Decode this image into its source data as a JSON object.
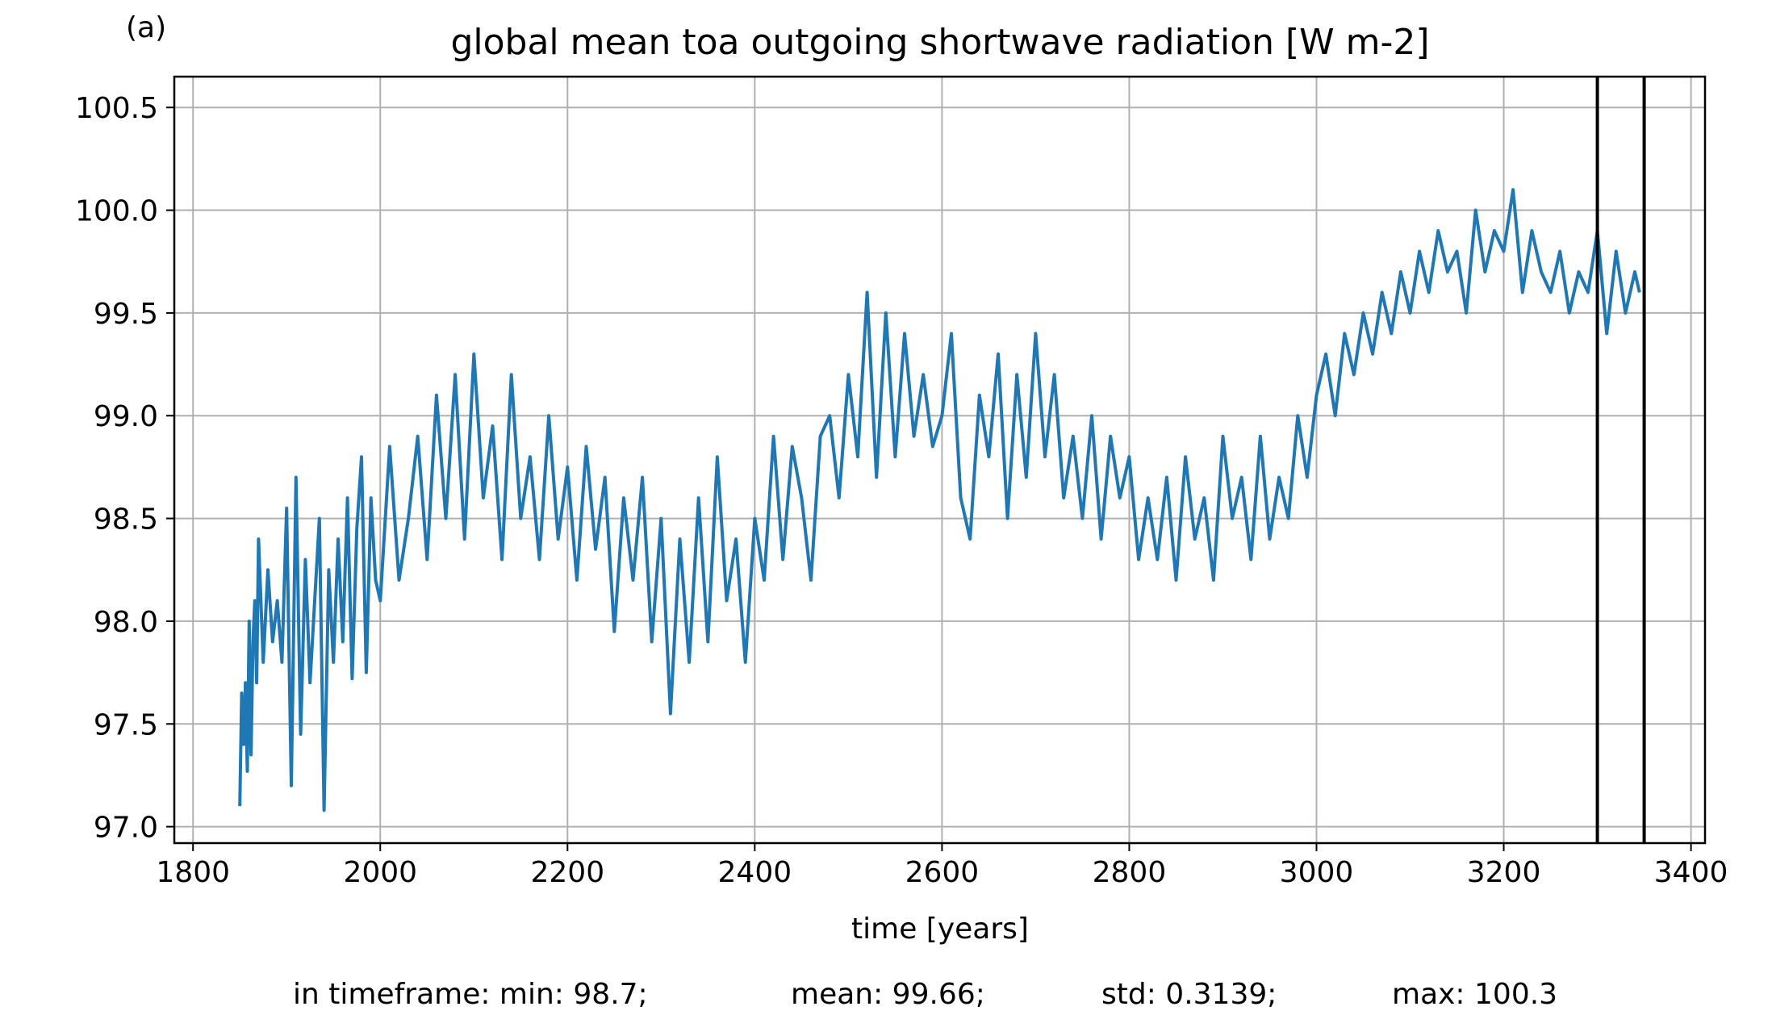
{
  "chart_data": {
    "type": "line",
    "panel_label": "(a)",
    "title": "global mean toa outgoing shortwave radiation [W m-2]",
    "xlabel": "time [years]",
    "ylabel": "",
    "xlim": [
      1780,
      3415
    ],
    "ylim": [
      96.92,
      100.65
    ],
    "xticks": [
      1800,
      2000,
      2200,
      2400,
      2600,
      2800,
      3000,
      3200,
      3400
    ],
    "xtick_labels": [
      "1800",
      "2000",
      "2200",
      "2400",
      "2600",
      "2800",
      "3000",
      "3200",
      "3400"
    ],
    "yticks": [
      97.0,
      97.5,
      98.0,
      98.5,
      99.0,
      99.5,
      100.0,
      100.5
    ],
    "ytick_labels": [
      "97.0",
      "97.5",
      "98.0",
      "98.5",
      "99.0",
      "99.5",
      "100.0",
      "100.5"
    ],
    "grid": true,
    "line_color": "#1f77b4",
    "marker_lines_x": [
      3300,
      3350
    ],
    "marker_line_color": "#000000",
    "series": [
      {
        "x": [
          1850,
          1852,
          1854,
          1856,
          1858,
          1860,
          1862,
          1864,
          1866,
          1868,
          1870,
          1875,
          1880,
          1885,
          1890,
          1895,
          1900,
          1905,
          1910,
          1915,
          1920,
          1925,
          1930,
          1935,
          1940,
          1945,
          1950,
          1955,
          1960,
          1965,
          1970,
          1975,
          1980,
          1985,
          1990,
          1995,
          2000,
          2010,
          2020,
          2030,
          2040,
          2050,
          2060,
          2070,
          2080,
          2090,
          2100,
          2110,
          2120,
          2130,
          2140,
          2150,
          2160,
          2170,
          2180,
          2190,
          2200,
          2210,
          2220,
          2230,
          2240,
          2250,
          2260,
          2270,
          2280,
          2290,
          2300,
          2310,
          2320,
          2330,
          2340,
          2350,
          2360,
          2370,
          2380,
          2390,
          2400,
          2410,
          2420,
          2430,
          2440,
          2450,
          2460,
          2470,
          2480,
          2490,
          2500,
          2510,
          2520,
          2530,
          2540,
          2550,
          2560,
          2570,
          2580,
          2590,
          2600,
          2610,
          2620,
          2630,
          2640,
          2650,
          2660,
          2670,
          2680,
          2690,
          2700,
          2710,
          2720,
          2730,
          2740,
          2750,
          2760,
          2770,
          2780,
          2790,
          2800,
          2810,
          2820,
          2830,
          2840,
          2850,
          2860,
          2870,
          2880,
          2890,
          2900,
          2910,
          2920,
          2930,
          2940,
          2950,
          2960,
          2970,
          2980,
          2990,
          3000,
          3010,
          3020,
          3030,
          3040,
          3050,
          3060,
          3070,
          3080,
          3090,
          3100,
          3110,
          3120,
          3130,
          3140,
          3150,
          3160,
          3170,
          3180,
          3190,
          3200,
          3210,
          3220,
          3230,
          3240,
          3250,
          3260,
          3270,
          3280,
          3290,
          3300,
          3310,
          3320,
          3330,
          3340,
          3345
        ],
        "values": [
          97.1,
          97.65,
          97.4,
          97.7,
          97.27,
          98.0,
          97.35,
          97.9,
          98.1,
          97.7,
          98.4,
          97.8,
          98.25,
          97.9,
          98.1,
          97.8,
          98.55,
          97.2,
          98.7,
          97.45,
          98.3,
          97.7,
          98.1,
          98.5,
          97.08,
          98.25,
          97.8,
          98.4,
          97.9,
          98.6,
          97.72,
          98.45,
          98.8,
          97.75,
          98.6,
          98.2,
          98.1,
          98.85,
          98.2,
          98.5,
          98.9,
          98.3,
          99.1,
          98.5,
          99.2,
          98.4,
          99.3,
          98.6,
          98.95,
          98.3,
          99.2,
          98.5,
          98.8,
          98.3,
          99.0,
          98.4,
          98.75,
          98.2,
          98.85,
          98.35,
          98.7,
          97.95,
          98.6,
          98.2,
          98.7,
          97.9,
          98.5,
          97.55,
          98.4,
          97.8,
          98.6,
          97.9,
          98.8,
          98.1,
          98.4,
          97.8,
          98.5,
          98.2,
          98.9,
          98.3,
          98.85,
          98.6,
          98.2,
          98.9,
          99.0,
          98.6,
          99.2,
          98.8,
          99.6,
          98.7,
          99.5,
          98.8,
          99.4,
          98.9,
          99.2,
          98.85,
          99.0,
          99.4,
          98.6,
          98.4,
          99.1,
          98.8,
          99.3,
          98.5,
          99.2,
          98.7,
          99.4,
          98.8,
          99.2,
          98.6,
          98.9,
          98.5,
          99.0,
          98.4,
          98.9,
          98.6,
          98.8,
          98.3,
          98.6,
          98.3,
          98.7,
          98.2,
          98.8,
          98.4,
          98.6,
          98.2,
          98.9,
          98.5,
          98.7,
          98.3,
          98.9,
          98.4,
          98.7,
          98.5,
          99.0,
          98.7,
          99.1,
          99.3,
          99.0,
          99.4,
          99.2,
          99.5,
          99.3,
          99.6,
          99.4,
          99.7,
          99.5,
          99.8,
          99.6,
          99.9,
          99.7,
          99.8,
          99.5,
          100.0,
          99.7,
          99.9,
          99.8,
          100.1,
          99.6,
          99.9,
          99.7,
          99.6,
          99.8,
          99.5,
          99.7,
          99.6,
          99.9,
          99.4,
          99.8,
          99.5,
          99.7,
          99.6
        ]
      }
    ]
  },
  "stats": {
    "min": "in timeframe: min: 98.7;",
    "mean": "mean: 99.66;",
    "std": "std: 0.3139;",
    "max": "max: 100.3"
  }
}
